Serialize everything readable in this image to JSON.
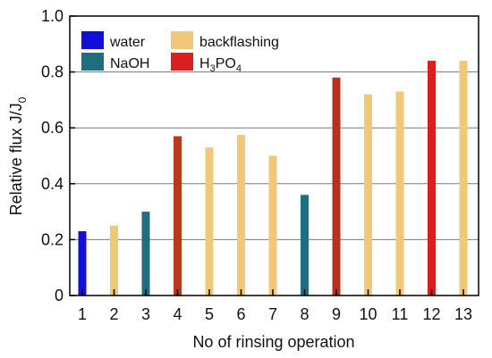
{
  "chart_data": {
    "type": "bar",
    "categories": [
      "1",
      "2",
      "3",
      "4",
      "5",
      "6",
      "7",
      "8",
      "9",
      "10",
      "11",
      "12",
      "13"
    ],
    "values": [
      0.23,
      0.25,
      0.3,
      0.57,
      0.53,
      0.575,
      0.5,
      0.36,
      0.78,
      0.72,
      0.73,
      0.84,
      0.84
    ],
    "series_by_bar": [
      "water",
      "backflashing",
      "NaOH",
      "H3PO4",
      "backflashing",
      "backflashing",
      "backflashing",
      "NaOH",
      "H3PO4",
      "backflashing",
      "backflashing",
      "H3PO4",
      "backflashing"
    ],
    "legend": [
      {
        "key": "water",
        "label": "water",
        "color": "#1010d8"
      },
      {
        "key": "NaOH",
        "label": "NaOH",
        "color": "#1f6e7f"
      },
      {
        "key": "backflashing",
        "label": "backflashing",
        "color": "#f0c878"
      },
      {
        "key": "H3PO4",
        "label_base": "H",
        "sub1": "3",
        "mid": "PO",
        "sub2": "4",
        "color": "#d82020"
      }
    ],
    "bar_overrides": {
      "3": "#b83a1e",
      "8": "#b8301e"
    },
    "xlabel": "No of rinsing operation",
    "ylabel_main": "Relative flux J/J",
    "ylabel_sub": "0",
    "ylim": [
      0,
      1.0
    ],
    "yticks": [
      "0",
      "0.2",
      "0.4",
      "0.6",
      "0.8",
      "1.0"
    ],
    "ytick_values": [
      0,
      0.2,
      0.4,
      0.6,
      0.8,
      1.0
    ],
    "gridlines": [
      0.2,
      0.4,
      0.6,
      0.8
    ],
    "legend_placement": "top-left"
  }
}
